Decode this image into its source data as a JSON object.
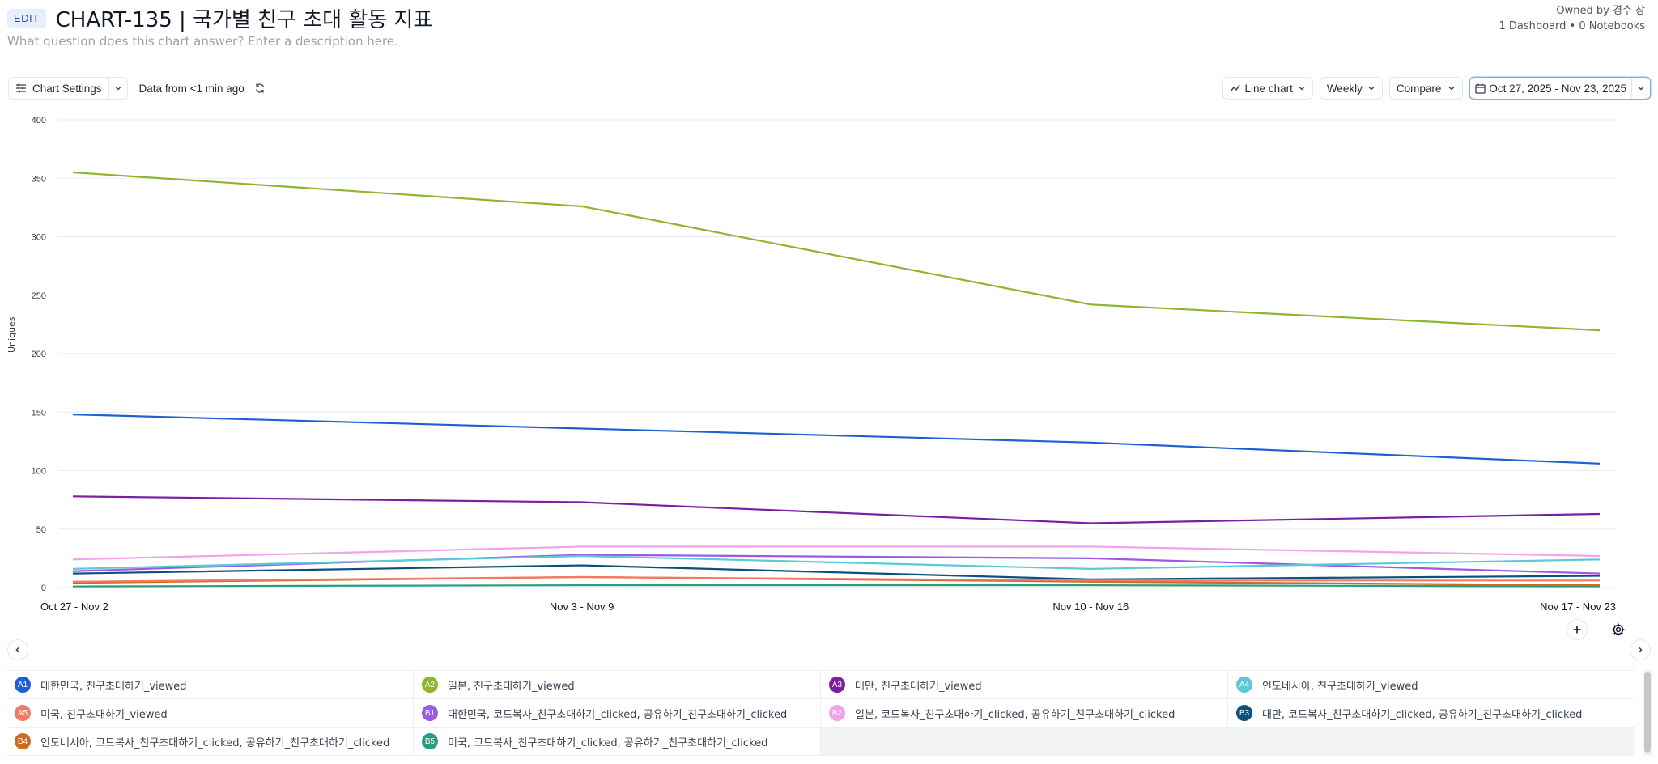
{
  "header": {
    "edit_label": "EDIT",
    "title": "CHART-135 | 국가별 친구 초대 활동 지표",
    "description_placeholder": "What question does this chart answer? Enter a description here.",
    "owner": "Owned by 경수 장",
    "stats": "1 Dashboard • 0 Notebooks"
  },
  "toolbar": {
    "chart_settings": "Chart Settings",
    "data_freshness": "Data from <1 min ago",
    "chart_type": "Line chart",
    "interval": "Weekly",
    "compare": "Compare",
    "date_range": "Oct 27, 2025 - Nov 23, 2025"
  },
  "chart_data": {
    "type": "line",
    "ylabel": "Uniques",
    "ylim": [
      0,
      400
    ],
    "yticks": [
      0,
      50,
      100,
      150,
      200,
      250,
      300,
      350,
      400
    ],
    "categories": [
      "Oct 27 - Nov 2",
      "Nov 3 - Nov 9",
      "Nov 10 - Nov 16",
      "Nov 17 - Nov 23"
    ],
    "grid": true,
    "series": [
      {
        "id": "A1",
        "name": "대한민국, 친구초대하기_viewed",
        "color": "#1f5fd6",
        "values": [
          148,
          136,
          124,
          106
        ]
      },
      {
        "id": "A2",
        "name": "일본, 친구초대하기_viewed",
        "color": "#8db52e",
        "values": [
          355,
          326,
          242,
          220
        ]
      },
      {
        "id": "A3",
        "name": "대만, 친구초대하기_viewed",
        "color": "#7a1fa2",
        "values": [
          78,
          73,
          55,
          63
        ]
      },
      {
        "id": "A4",
        "name": "인도네시아, 친구초대하기_viewed",
        "color": "#5ec9d6",
        "values": [
          16,
          27,
          16,
          24
        ]
      },
      {
        "id": "A5",
        "name": "미국, 친구초대하기_viewed",
        "color": "#f07a66",
        "values": [
          5,
          9,
          6,
          6
        ]
      },
      {
        "id": "B1",
        "name": "대한민국, 코드복사_친구초대하기_clicked, 공유하기_친구초대하기_clicked",
        "color": "#9b59e8",
        "values": [
          14,
          28,
          25,
          12
        ]
      },
      {
        "id": "B2",
        "name": "일본, 코드복사_친구초대하기_clicked, 공유하기_친구초대하기_clicked",
        "color": "#f2a2e6",
        "values": [
          24,
          35,
          35,
          27
        ]
      },
      {
        "id": "B3",
        "name": "대만, 코드복사_친구초대하기_clicked, 공유하기_친구초대하기_clicked",
        "color": "#0f4f7c",
        "values": [
          12,
          19,
          7,
          10
        ]
      },
      {
        "id": "B4",
        "name": "인도네시아, 코드복사_친구초대하기_clicked, 공유하기_친구초대하기_clicked",
        "color": "#d2691e",
        "values": [
          4,
          9,
          5,
          2
        ]
      },
      {
        "id": "B5",
        "name": "미국, 코드복사_친구초대하기_clicked, 공유하기_친구초대하기_clicked",
        "color": "#2a9d7f",
        "values": [
          1,
          2,
          2,
          1
        ]
      }
    ]
  }
}
